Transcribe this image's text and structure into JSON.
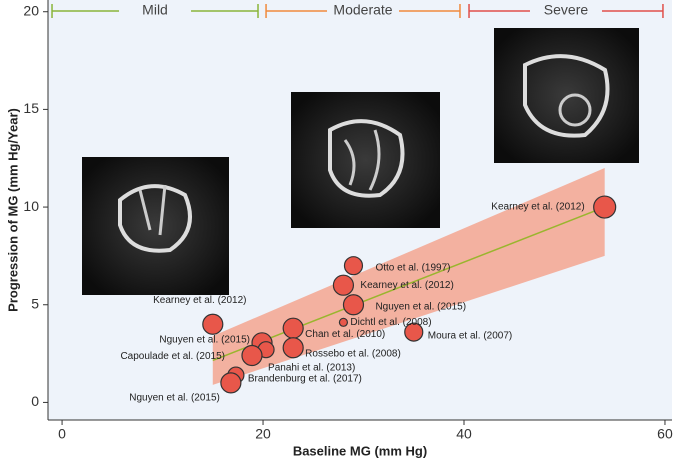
{
  "chart_data": {
    "type": "scatter",
    "x_label": "Baseline MG (mm Hg)",
    "y_label": "Progression of MG (mm Hg/Year)",
    "xlim": [
      -1.4,
      60.7
    ],
    "ylim": [
      -0.9,
      20.6
    ],
    "xticks": [
      0,
      20,
      40,
      60
    ],
    "yticks": [
      0,
      5,
      10,
      15,
      20
    ],
    "severity": [
      {
        "label": "Mild",
        "range": [
          -1,
          19.5
        ],
        "color": "#8ab53a"
      },
      {
        "label": "Moderate",
        "range": [
          20.3,
          39.6
        ],
        "color": "#f08a3c"
      },
      {
        "label": "Severe",
        "range": [
          40.5,
          59.8
        ],
        "color": "#e0504a"
      }
    ],
    "band": {
      "x": [
        15,
        54
      ],
      "upper": [
        3.4,
        12
      ],
      "lower": [
        0.9,
        7.5
      ],
      "color": "#f4a08a"
    },
    "fit": {
      "x": [
        15,
        54
      ],
      "values": [
        2.15,
        10
      ],
      "color": "#9ab52e"
    },
    "series": [
      {
        "color": "#e8574a",
        "x": [
          54,
          29,
          28,
          29,
          28,
          35,
          23,
          23,
          15,
          19.9,
          20.3,
          18.9,
          17.3,
          16.8
        ],
        "values": [
          10,
          7,
          6,
          5,
          4.1,
          3.6,
          3.8,
          2.8,
          4,
          3.05,
          2.7,
          2.4,
          1.4,
          1.0
        ],
        "sizes": [
          11,
          9,
          10,
          10,
          4,
          9,
          10,
          10,
          10,
          10,
          8,
          10,
          8,
          10
        ],
        "labels": [
          "Kearney et al. (2012)",
          "Otto et al. (1997)",
          "Kearney et al. (2012)",
          "Nguyen et al. (2015)",
          "Dichtl et al. (2008)",
          "Moura et al. (2007)",
          "Chan et al. (2010)",
          "Rossebo et al. (2008)",
          "Kearney et al. (2012)",
          "Nguyen et al. (2015)",
          "Panahi et al. (2013)",
          "Capoulade et al. (2015)",
          "Brandenburg et al. (2017)",
          "Nguyen et al. (2015)"
        ]
      }
    ]
  }
}
